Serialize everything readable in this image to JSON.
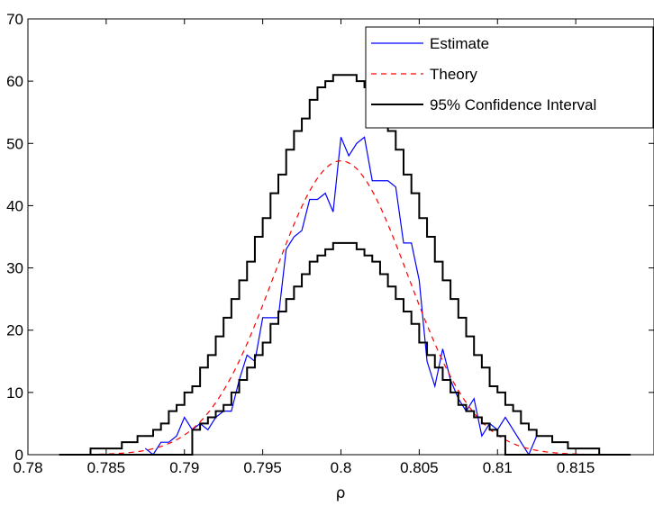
{
  "chart_data": {
    "type": "line",
    "title": "",
    "xlabel": "ρ",
    "ylabel": "",
    "xlim": [
      0.78,
      0.82
    ],
    "ylim": [
      0,
      70
    ],
    "grid": false,
    "legend_position": "top-right",
    "xticks": [
      {
        "value": 0.78,
        "label": "0.78"
      },
      {
        "value": 0.785,
        "label": "0.785"
      },
      {
        "value": 0.79,
        "label": "0.79"
      },
      {
        "value": 0.795,
        "label": "0.795"
      },
      {
        "value": 0.8,
        "label": "0.8"
      },
      {
        "value": 0.805,
        "label": "0.805"
      },
      {
        "value": 0.81,
        "label": "0.81"
      },
      {
        "value": 0.815,
        "label": "0.815"
      }
    ],
    "yticks": [
      {
        "value": 0,
        "label": "0"
      },
      {
        "value": 10,
        "label": "10"
      },
      {
        "value": 20,
        "label": "20"
      },
      {
        "value": 30,
        "label": "30"
      },
      {
        "value": 40,
        "label": "40"
      },
      {
        "value": 50,
        "label": "50"
      },
      {
        "value": 60,
        "label": "60"
      },
      {
        "value": 70,
        "label": "70"
      }
    ],
    "series": [
      {
        "name": "Estimate",
        "color": "#0000ff",
        "style": "solid",
        "points": [
          [
            0.7875,
            1
          ],
          [
            0.788,
            0
          ],
          [
            0.7885,
            2
          ],
          [
            0.789,
            2
          ],
          [
            0.7895,
            3
          ],
          [
            0.79,
            6
          ],
          [
            0.7905,
            4
          ],
          [
            0.791,
            5
          ],
          [
            0.7915,
            4
          ],
          [
            0.792,
            6
          ],
          [
            0.7925,
            7
          ],
          [
            0.793,
            7
          ],
          [
            0.7935,
            12
          ],
          [
            0.794,
            16
          ],
          [
            0.7945,
            15
          ],
          [
            0.795,
            22
          ],
          [
            0.7955,
            22
          ],
          [
            0.796,
            22
          ],
          [
            0.7965,
            33
          ],
          [
            0.797,
            35
          ],
          [
            0.7975,
            36
          ],
          [
            0.798,
            41
          ],
          [
            0.7985,
            41
          ],
          [
            0.799,
            42
          ],
          [
            0.7995,
            39
          ],
          [
            0.8,
            51
          ],
          [
            0.8005,
            48
          ],
          [
            0.801,
            50
          ],
          [
            0.8015,
            51
          ],
          [
            0.802,
            44
          ],
          [
            0.8025,
            44
          ],
          [
            0.803,
            44
          ],
          [
            0.8035,
            43
          ],
          [
            0.804,
            34
          ],
          [
            0.8045,
            34
          ],
          [
            0.805,
            28
          ],
          [
            0.8055,
            15
          ],
          [
            0.806,
            11
          ],
          [
            0.8065,
            17
          ],
          [
            0.807,
            12
          ],
          [
            0.8075,
            9
          ],
          [
            0.808,
            7
          ],
          [
            0.8085,
            9
          ],
          [
            0.809,
            3
          ],
          [
            0.8095,
            5
          ],
          [
            0.81,
            4
          ],
          [
            0.8105,
            6
          ],
          [
            0.811,
            4
          ],
          [
            0.8115,
            2
          ],
          [
            0.812,
            0
          ],
          [
            0.8125,
            3
          ]
        ]
      },
      {
        "name": "Theory",
        "color": "#ff0000",
        "style": "dashed",
        "gaussian": {
          "peak": 47.2,
          "mean": 0.8,
          "sd": 0.0043,
          "from": 0.782,
          "to": 0.817
        }
      },
      {
        "name": "95% Confidence Interval",
        "color": "#000000",
        "style": "solid",
        "stepped": true,
        "bands": {
          "upper": {
            "peak": 61,
            "mean": 0.8,
            "sd": 0.0052,
            "from": 0.7835,
            "to": 0.8165
          },
          "lower": {
            "peak": 34,
            "mean": 0.8,
            "sd": 0.0045,
            "from": 0.79,
            "to": 0.81
          }
        }
      }
    ]
  }
}
